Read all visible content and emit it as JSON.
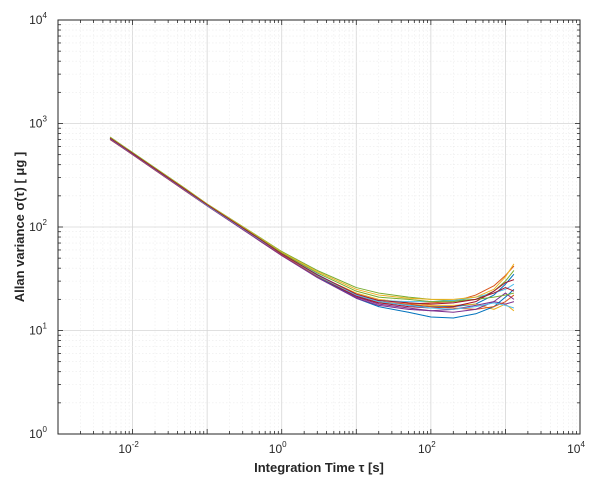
{
  "chart_data": {
    "type": "line",
    "title": "",
    "xlabel": "Integration Time τ [s]",
    "ylabel": "Allan variance σ(τ) [ μg ]",
    "xscale": "log",
    "yscale": "log",
    "xlim": [
      0.001,
      10000
    ],
    "ylim": [
      1,
      10000
    ],
    "grid": true,
    "minor_grid": true,
    "legend": "none",
    "x_ticks": [
      {
        "base": "10",
        "exp": "-2",
        "value": 0.01
      },
      {
        "base": "10",
        "exp": "0",
        "value": 1
      },
      {
        "base": "10",
        "exp": "2",
        "value": 100
      },
      {
        "base": "10",
        "exp": "4",
        "value": 10000
      }
    ],
    "y_ticks": [
      {
        "base": "10",
        "exp": "0",
        "value": 1
      },
      {
        "base": "10",
        "exp": "1",
        "value": 10
      },
      {
        "base": "10",
        "exp": "2",
        "value": 100
      },
      {
        "base": "10",
        "exp": "3",
        "value": 1000
      },
      {
        "base": "10",
        "exp": "4",
        "value": 10000
      }
    ],
    "x": [
      0.005,
      0.01,
      0.05,
      0.1,
      0.5,
      1,
      3,
      10,
      20,
      50,
      100,
      200,
      400,
      700,
      1000,
      1300
    ],
    "series": [
      {
        "color": "#0072bd",
        "values": [
          730,
          520,
          235,
          165,
          78,
          56,
          34,
          22,
          19,
          17.5,
          17,
          17,
          18,
          22,
          28,
          35
        ]
      },
      {
        "color": "#d95319",
        "values": [
          700,
          500,
          225,
          160,
          74,
          53,
          33,
          21,
          18.5,
          18,
          18.5,
          19,
          22,
          27,
          34,
          42
        ]
      },
      {
        "color": "#edb120",
        "values": [
          720,
          510,
          230,
          162,
          76,
          55,
          34,
          23,
          20,
          18.5,
          17.5,
          17.5,
          18,
          16,
          18,
          15.5
        ]
      },
      {
        "color": "#7e2f8e",
        "values": [
          710,
          505,
          228,
          161,
          75,
          54,
          33,
          21,
          18,
          16.5,
          15.5,
          16,
          17.5,
          19,
          18,
          19
        ]
      },
      {
        "color": "#77ac30",
        "values": [
          740,
          525,
          238,
          167,
          80,
          58,
          38,
          26,
          23,
          21,
          20,
          19.5,
          20,
          24,
          30,
          38
        ]
      },
      {
        "color": "#4dbeee",
        "values": [
          725,
          515,
          232,
          164,
          77,
          55,
          35,
          22,
          19.5,
          19,
          19,
          19.5,
          21,
          23,
          25,
          28
        ]
      },
      {
        "color": "#a2142f",
        "values": [
          715,
          508,
          229,
          161,
          75,
          54,
          33,
          21.5,
          18.5,
          17,
          16.5,
          17,
          19,
          24,
          29,
          31
        ]
      },
      {
        "color": "#0072bd",
        "values": [
          720,
          512,
          231,
          163,
          76,
          54,
          33,
          20.5,
          17,
          15,
          13.5,
          13.2,
          14.5,
          17,
          21,
          25
        ]
      },
      {
        "color": "#d95319",
        "values": [
          712,
          506,
          228,
          161,
          75,
          54,
          33.5,
          22,
          19,
          18,
          17,
          16.5,
          16,
          17,
          19,
          22
        ]
      },
      {
        "color": "#edb120",
        "values": [
          732,
          520,
          236,
          166,
          79,
          57,
          37,
          25,
          22,
          20.5,
          20,
          20,
          21,
          25,
          33,
          44
        ]
      },
      {
        "color": "#7e2f8e",
        "values": [
          705,
          502,
          226,
          160,
          74,
          53,
          32.5,
          20.5,
          17.5,
          16,
          15.5,
          15,
          16,
          19,
          23,
          20
        ]
      },
      {
        "color": "#77ac30",
        "values": [
          728,
          518,
          234,
          165,
          78,
          56,
          36,
          24,
          21,
          20,
          19,
          19,
          20,
          21,
          22,
          23
        ]
      },
      {
        "color": "#4dbeee",
        "values": [
          718,
          510,
          230,
          162,
          76,
          55,
          34,
          22,
          19,
          17.5,
          16.5,
          16,
          17,
          18.5,
          17.5,
          16.5
        ]
      },
      {
        "color": "#a2142f",
        "values": [
          722,
          514,
          232,
          164,
          77,
          55,
          34.5,
          22.5,
          19.5,
          18.5,
          18,
          18.5,
          20,
          23,
          26,
          24
        ]
      }
    ]
  }
}
